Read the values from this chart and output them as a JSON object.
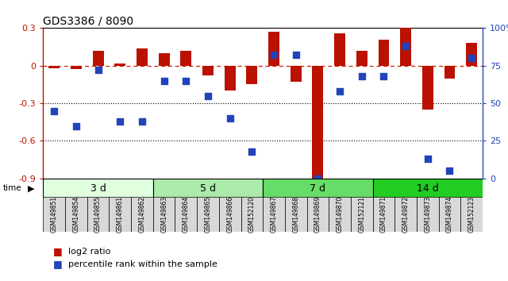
{
  "title": "GDS3386 / 8090",
  "samples": [
    "GSM149851",
    "GSM149854",
    "GSM149855",
    "GSM149861",
    "GSM149862",
    "GSM149863",
    "GSM149864",
    "GSM149865",
    "GSM149866",
    "GSM152120",
    "GSM149867",
    "GSM149868",
    "GSM149869",
    "GSM149870",
    "GSM152121",
    "GSM149871",
    "GSM149872",
    "GSM149873",
    "GSM149874",
    "GSM152123"
  ],
  "log2_ratio": [
    -0.02,
    -0.03,
    0.12,
    0.02,
    0.14,
    0.1,
    0.12,
    -0.08,
    -0.2,
    -0.15,
    0.27,
    -0.13,
    -0.92,
    0.26,
    0.12,
    0.21,
    0.3,
    -0.35,
    -0.1,
    0.18
  ],
  "percentile_rank": [
    45,
    35,
    72,
    38,
    38,
    65,
    65,
    55,
    40,
    18,
    82,
    82,
    0,
    58,
    68,
    68,
    88,
    13,
    5,
    80
  ],
  "groups": [
    {
      "label": "3 d",
      "start": 0,
      "end": 5,
      "color": "#dfffdf"
    },
    {
      "label": "5 d",
      "start": 5,
      "end": 10,
      "color": "#aaeaaa"
    },
    {
      "label": "7 d",
      "start": 10,
      "end": 15,
      "color": "#66dd66"
    },
    {
      "label": "14 d",
      "start": 15,
      "end": 20,
      "color": "#22cc22"
    }
  ],
  "ylim_left": [
    -0.9,
    0.3
  ],
  "ylim_right": [
    0,
    100
  ],
  "yticks_left": [
    -0.9,
    -0.6,
    -0.3,
    0.0,
    0.3
  ],
  "ytick_labels_left": [
    "-0.9",
    "-0.6",
    "-0.3",
    "0",
    "0.3"
  ],
  "yticks_right": [
    0,
    25,
    50,
    75,
    100
  ],
  "ytick_labels_right": [
    "0",
    "25",
    "50",
    "75",
    "100%"
  ],
  "bar_color": "#bb1100",
  "dot_color": "#2244bb",
  "zero_line_color": "#cc2200",
  "bg_color": "#ffffff"
}
